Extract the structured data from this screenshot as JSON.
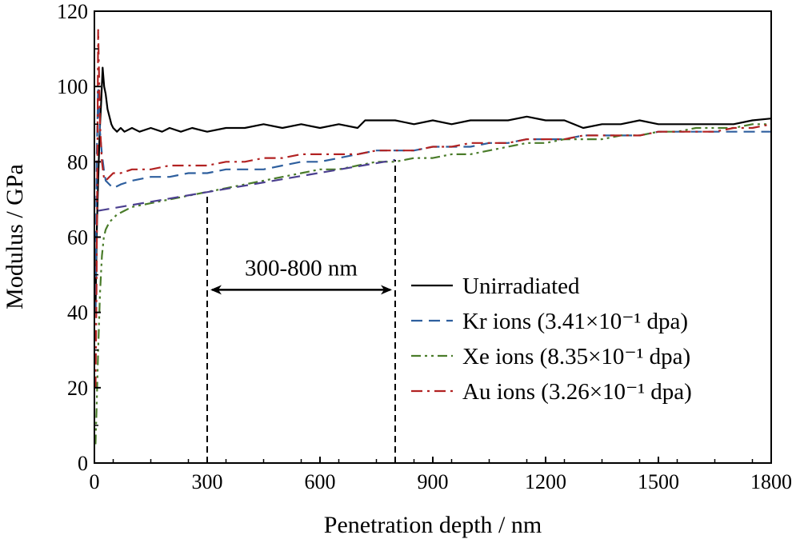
{
  "chart_data": {
    "type": "line",
    "xlabel": "Penetration depth / nm",
    "ylabel": "Modulus / GPa",
    "xlim": [
      0,
      1800
    ],
    "ylim": [
      0,
      120
    ],
    "xticks": [
      0,
      300,
      600,
      900,
      1200,
      1500,
      1800
    ],
    "yticks": [
      0,
      20,
      40,
      60,
      80,
      100,
      120
    ],
    "grid": false,
    "legend_position": "right",
    "series": [
      {
        "name": "Unirradiated",
        "color": "#000000",
        "dash": "solid",
        "x": [
          3,
          6,
          10,
          14,
          18,
          22,
          26,
          30,
          35,
          40,
          45,
          50,
          60,
          70,
          80,
          100,
          120,
          150,
          180,
          200,
          230,
          260,
          300,
          350,
          400,
          450,
          500,
          550,
          600,
          650,
          700,
          720,
          750,
          800,
          850,
          900,
          950,
          1000,
          1050,
          1100,
          1150,
          1200,
          1250,
          1300,
          1350,
          1400,
          1450,
          1500,
          1550,
          1600,
          1650,
          1700,
          1750,
          1800
        ],
        "y": [
          40,
          60,
          75,
          88,
          96,
          105,
          100,
          98,
          94,
          92,
          90,
          89,
          88,
          89,
          88,
          89,
          88,
          89,
          88,
          89,
          88,
          89,
          88,
          89,
          89,
          90,
          89,
          90,
          89,
          90,
          89,
          91,
          91,
          91,
          90,
          91,
          90,
          91,
          91,
          91,
          92,
          91,
          91,
          89,
          90,
          90,
          91,
          90,
          90,
          90,
          90,
          90,
          91,
          91.5
        ]
      },
      {
        "name": "Kr ions (3.41×10⁻¹ dpa)",
        "color": "#2e5f9e",
        "dash": "dash",
        "x": [
          3,
          6,
          10,
          15,
          20,
          25,
          30,
          40,
          50,
          70,
          100,
          150,
          200,
          250,
          300,
          350,
          400,
          450,
          500,
          550,
          600,
          650,
          700,
          750,
          800,
          850,
          900,
          950,
          1000,
          1050,
          1100,
          1150,
          1200,
          1250,
          1300,
          1350,
          1400,
          1450,
          1500,
          1550,
          1600,
          1650,
          1700,
          1750,
          1800
        ],
        "y": [
          40,
          80,
          100,
          88,
          82,
          78,
          75,
          74,
          73,
          74,
          75,
          76,
          76,
          77,
          77,
          78,
          78,
          78,
          79,
          80,
          80,
          81,
          82,
          83,
          83,
          83,
          84,
          84,
          84,
          85,
          85,
          86,
          86,
          86,
          87,
          87,
          87,
          87,
          88,
          88,
          88,
          88,
          88,
          88,
          88
        ]
      },
      {
        "name": "Xe ions (8.35×10⁻¹ dpa)",
        "color": "#4a7c2a",
        "dash": "dashdotdot",
        "x": [
          3,
          6,
          10,
          15,
          20,
          25,
          30,
          40,
          50,
          60,
          80,
          100,
          150,
          200,
          250,
          300,
          350,
          400,
          450,
          500,
          550,
          600,
          650,
          700,
          750,
          800,
          850,
          900,
          950,
          1000,
          1050,
          1100,
          1150,
          1200,
          1250,
          1300,
          1350,
          1400,
          1450,
          1500,
          1550,
          1600,
          1650,
          1700,
          1750,
          1800
        ],
        "y": [
          5,
          15,
          30,
          45,
          55,
          60,
          62,
          64,
          65,
          66,
          67,
          68,
          69,
          70,
          71,
          72,
          73,
          74,
          75,
          76,
          77,
          78,
          78,
          79,
          80,
          80,
          81,
          81,
          82,
          82,
          83,
          84,
          85,
          85,
          86,
          86,
          86,
          87,
          87,
          88,
          88,
          89,
          89,
          89,
          90,
          90
        ]
      },
      {
        "name": "Au ions (3.26×10⁻¹ dpa)",
        "color": "#b22222",
        "dash": "dashdot",
        "x": [
          3,
          6,
          10,
          15,
          20,
          25,
          30,
          40,
          50,
          70,
          100,
          150,
          200,
          250,
          300,
          350,
          400,
          450,
          500,
          550,
          600,
          650,
          700,
          750,
          800,
          850,
          900,
          950,
          1000,
          1050,
          1100,
          1150,
          1200,
          1250,
          1300,
          1350,
          1400,
          1450,
          1500,
          1550,
          1600,
          1650,
          1700,
          1750,
          1800
        ],
        "y": [
          20,
          50,
          115,
          90,
          80,
          76,
          75,
          76,
          77,
          77,
          78,
          78,
          79,
          79,
          79,
          80,
          80,
          81,
          81,
          82,
          82,
          82,
          82,
          83,
          83,
          83,
          84,
          84,
          85,
          85,
          85,
          86,
          86,
          86,
          87,
          87,
          87,
          87,
          88,
          88,
          88,
          88,
          89,
          89,
          90
        ]
      }
    ],
    "fit_line": {
      "color": "#4b3f8f",
      "dash": "dash",
      "x": [
        10,
        800
      ],
      "y": [
        67,
        80.5
      ]
    },
    "vlines": [
      {
        "x": 300,
        "y_top": 71.5
      },
      {
        "x": 800,
        "y_top": 80.5
      }
    ],
    "annotation": {
      "text": "300-800 nm",
      "x_from": 300,
      "x_to": 800,
      "y": 46
    }
  }
}
